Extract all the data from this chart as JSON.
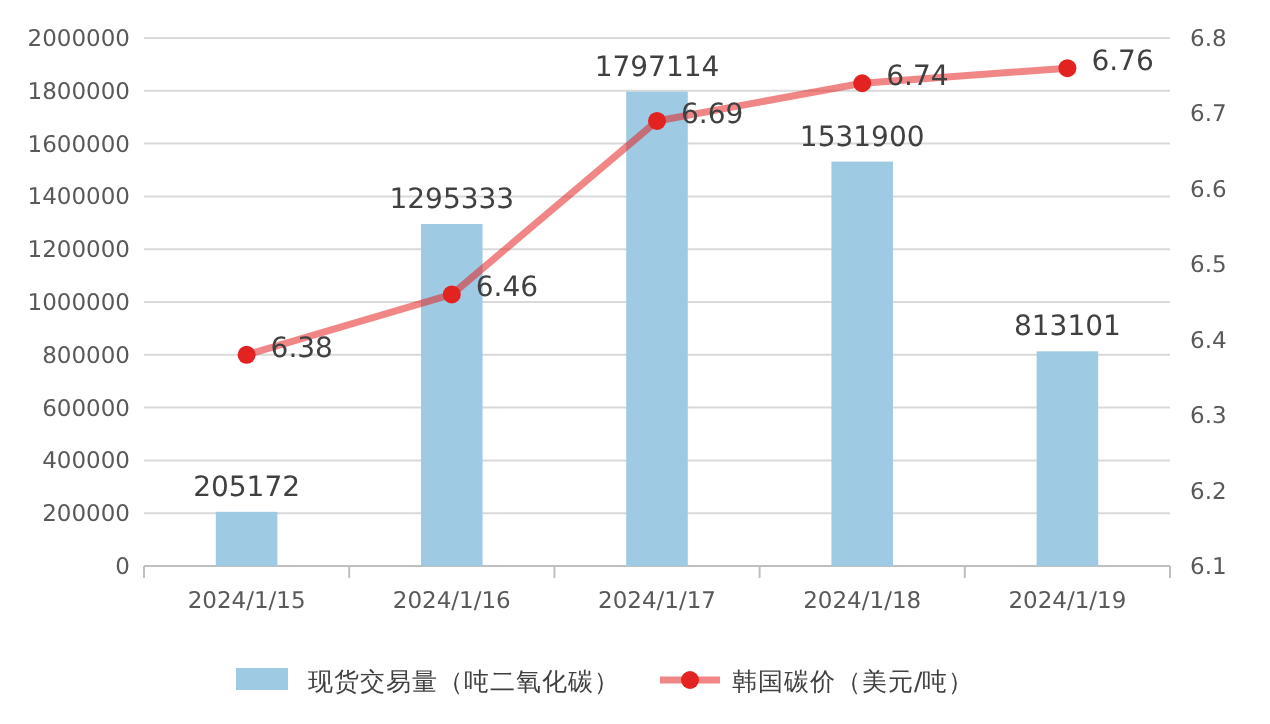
{
  "chart_data": {
    "type": "bar",
    "categories": [
      "2024/1/15",
      "2024/1/16",
      "2024/1/17",
      "2024/1/18",
      "2024/1/19"
    ],
    "series": [
      {
        "name": "现货交易量（吨二氧化碳）",
        "color": "#9ecae3",
        "values": [
          205172,
          1295333,
          1797114,
          1531900,
          813101
        ]
      },
      {
        "name": "韩国碳价（美元/吨）",
        "type": "line",
        "axis": "y2",
        "color": "#e32222",
        "values": [
          6.38,
          6.46,
          6.69,
          6.74,
          6.76
        ]
      }
    ],
    "ylim": [
      0,
      2000000
    ],
    "yticks": [
      0,
      200000,
      400000,
      600000,
      800000,
      1000000,
      1200000,
      1400000,
      1600000,
      1800000,
      2000000
    ],
    "y2lim": [
      6.1,
      6.8
    ],
    "y2ticks": [
      6.1,
      6.2,
      6.3,
      6.4,
      6.5,
      6.6,
      6.7,
      6.8
    ],
    "grid": "y",
    "legend": "bottom",
    "marker": "circle",
    "line_style": "solid",
    "data_labels": true
  }
}
